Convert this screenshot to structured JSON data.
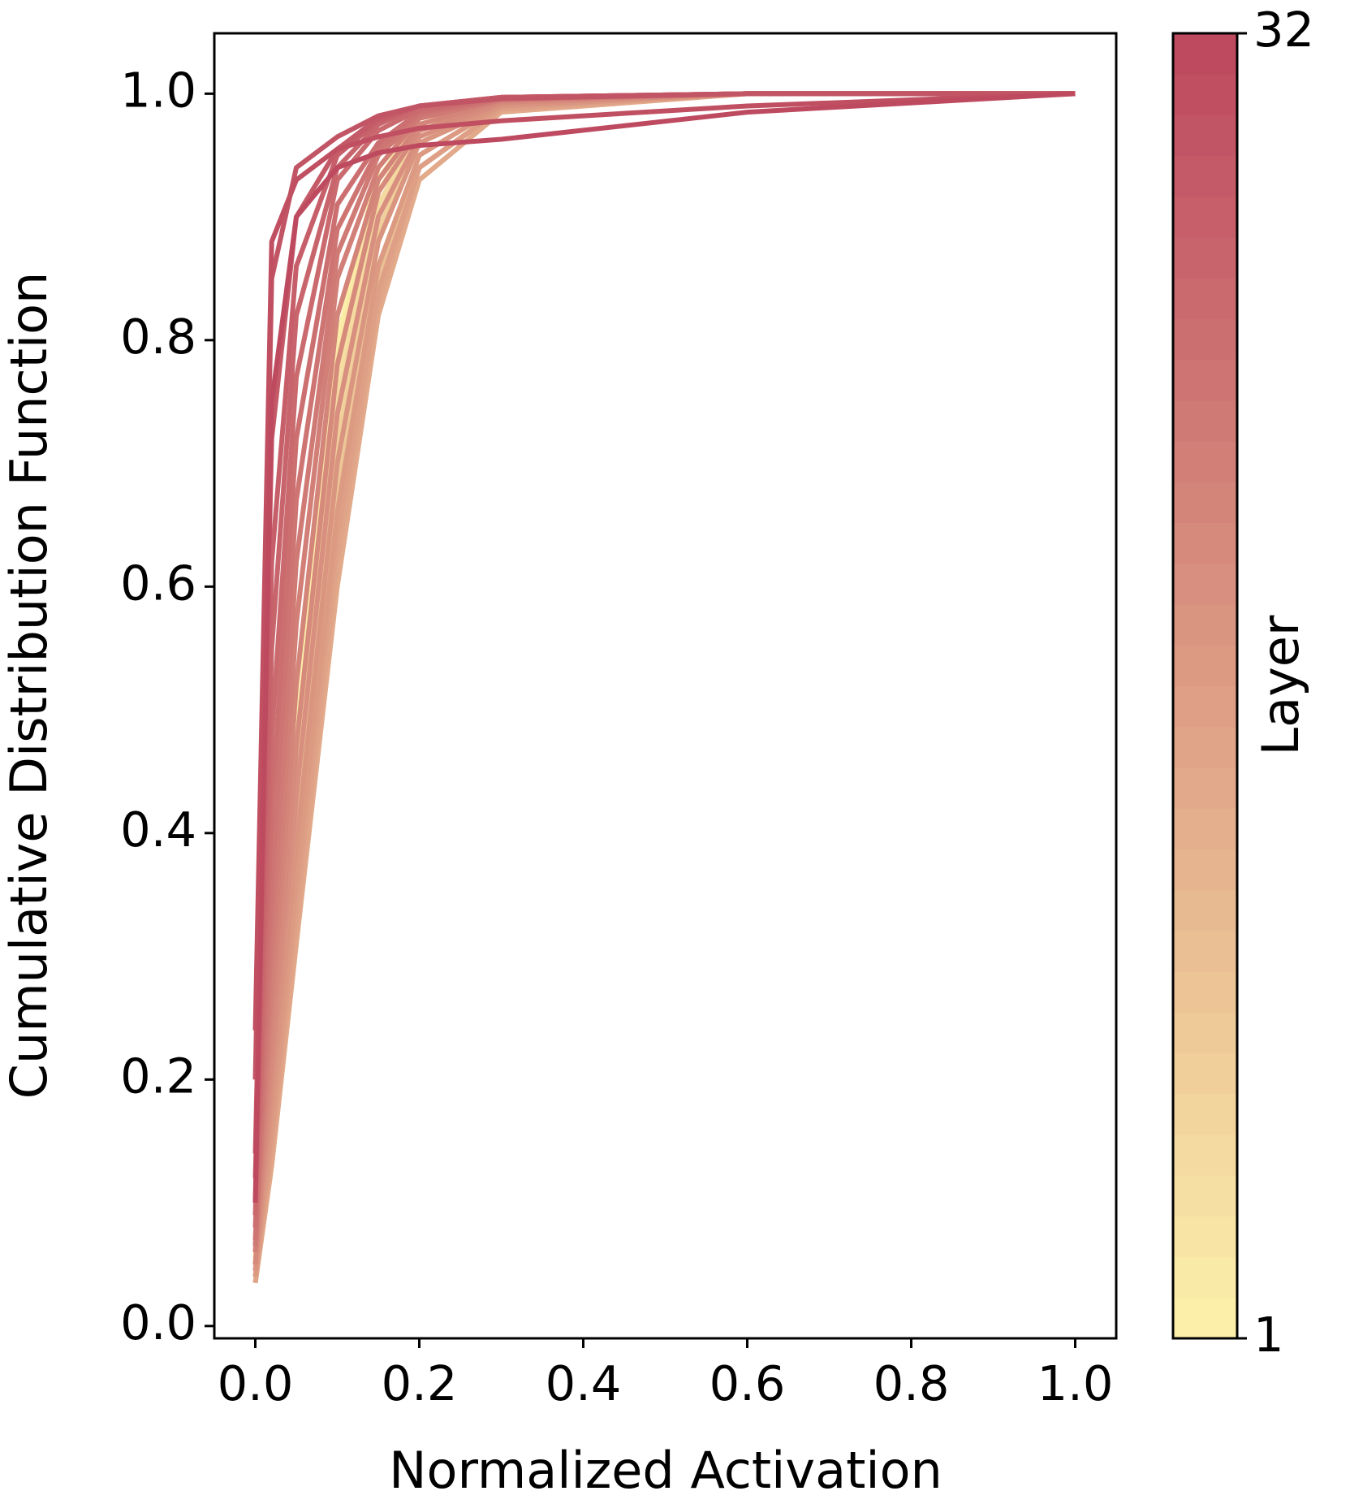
{
  "chart_data": {
    "type": "line",
    "x_label": "Normalized Activation",
    "y_label": "Cumulative Distribution Function",
    "x": [
      0,
      0.02,
      0.05,
      0.1,
      0.15,
      0.2,
      0.3,
      0.6,
      1.0
    ],
    "series": [
      {
        "color": "#fcefa9",
        "values": [
          0.06,
          0.24,
          0.48,
          0.8,
          0.94,
          0.98,
          0.995,
          1,
          1
        ]
      },
      {
        "color": "#faeaa7",
        "values": [
          0.06,
          0.23,
          0.47,
          0.79,
          0.93,
          0.98,
          0.995,
          1,
          1
        ]
      },
      {
        "color": "#f8e4a4",
        "values": [
          0.055,
          0.22,
          0.46,
          0.78,
          0.93,
          0.975,
          0.995,
          1,
          1
        ]
      },
      {
        "color": "#f6dfa2",
        "values": [
          0.055,
          0.21,
          0.45,
          0.77,
          0.92,
          0.975,
          0.995,
          1,
          1
        ]
      },
      {
        "color": "#f4daa0",
        "values": [
          0.05,
          0.2,
          0.43,
          0.75,
          0.91,
          0.97,
          0.993,
          1,
          1
        ]
      },
      {
        "color": "#f2d49d",
        "values": [
          0.05,
          0.19,
          0.42,
          0.73,
          0.9,
          0.97,
          0.993,
          1,
          1
        ]
      },
      {
        "color": "#f0cf9b",
        "values": [
          0.05,
          0.18,
          0.4,
          0.71,
          0.89,
          0.96,
          0.992,
          1,
          1
        ]
      },
      {
        "color": "#eeca99",
        "values": [
          0.045,
          0.17,
          0.38,
          0.69,
          0.88,
          0.96,
          0.99,
          1,
          1
        ]
      },
      {
        "color": "#ecc496",
        "values": [
          0.045,
          0.16,
          0.36,
          0.67,
          0.86,
          0.95,
          0.99,
          1,
          1
        ]
      },
      {
        "color": "#eabf94",
        "values": [
          0.04,
          0.15,
          0.34,
          0.65,
          0.85,
          0.95,
          0.99,
          1,
          1
        ]
      },
      {
        "color": "#e8ba91",
        "values": [
          0.04,
          0.14,
          0.33,
          0.63,
          0.84,
          0.94,
          0.988,
          1,
          1
        ]
      },
      {
        "color": "#e6b48f",
        "values": [
          0.04,
          0.14,
          0.32,
          0.62,
          0.83,
          0.94,
          0.988,
          1,
          1
        ]
      },
      {
        "color": "#e4af8d",
        "values": [
          0.035,
          0.13,
          0.31,
          0.61,
          0.82,
          0.93,
          0.985,
          1,
          1
        ]
      },
      {
        "color": "#e2aa8a",
        "values": [
          0.035,
          0.13,
          0.31,
          0.6,
          0.82,
          0.93,
          0.985,
          1,
          1
        ]
      },
      {
        "color": "#e0a488",
        "values": [
          0.035,
          0.14,
          0.32,
          0.62,
          0.83,
          0.94,
          0.987,
          1,
          1
        ]
      },
      {
        "color": "#de9f86",
        "values": [
          0.04,
          0.15,
          0.34,
          0.64,
          0.84,
          0.94,
          0.988,
          1,
          1
        ]
      },
      {
        "color": "#dc9a83",
        "values": [
          0.04,
          0.16,
          0.36,
          0.66,
          0.86,
          0.95,
          0.99,
          1,
          1
        ]
      },
      {
        "color": "#da9581",
        "values": [
          0.045,
          0.18,
          0.39,
          0.7,
          0.88,
          0.96,
          0.99,
          1,
          1
        ]
      },
      {
        "color": "#d88f7f",
        "values": [
          0.05,
          0.2,
          0.43,
          0.74,
          0.9,
          0.965,
          0.992,
          1,
          1
        ]
      },
      {
        "color": "#d68a7c",
        "values": [
          0.05,
          0.22,
          0.47,
          0.78,
          0.92,
          0.97,
          0.993,
          1,
          1
        ]
      },
      {
        "color": "#d4857a",
        "values": [
          0.06,
          0.25,
          0.52,
          0.82,
          0.93,
          0.975,
          0.994,
          1,
          1
        ]
      },
      {
        "color": "#d27f78",
        "values": [
          0.06,
          0.28,
          0.57,
          0.85,
          0.94,
          0.98,
          0.995,
          1,
          1
        ]
      },
      {
        "color": "#d07a75",
        "values": [
          0.065,
          0.32,
          0.62,
          0.87,
          0.95,
          0.98,
          0.995,
          1,
          1
        ]
      },
      {
        "color": "#ce7573",
        "values": [
          0.07,
          0.36,
          0.67,
          0.89,
          0.955,
          0.983,
          0.996,
          1,
          1
        ]
      },
      {
        "color": "#cc6f70",
        "values": [
          0.08,
          0.42,
          0.72,
          0.91,
          0.96,
          0.985,
          0.996,
          1,
          1
        ]
      },
      {
        "color": "#ca6a6e",
        "values": [
          0.09,
          0.48,
          0.77,
          0.93,
          0.97,
          0.987,
          0.997,
          1,
          1
        ]
      },
      {
        "color": "#c8656c",
        "values": [
          0.1,
          0.55,
          0.82,
          0.94,
          0.975,
          0.99,
          0.997,
          1,
          1
        ]
      },
      {
        "color": "#c65f69",
        "values": [
          0.12,
          0.62,
          0.86,
          0.95,
          0.978,
          0.99,
          0.997,
          1,
          1
        ]
      },
      {
        "color": "#c45a67",
        "values": [
          0.14,
          0.72,
          0.9,
          0.955,
          0.98,
          0.99,
          0.997,
          1,
          1
        ]
      },
      {
        "color": "#c25565",
        "values": [
          0.2,
          0.85,
          0.94,
          0.965,
          0.982,
          0.99,
          0.996,
          1,
          1
        ]
      },
      {
        "color": "#c04f62",
        "values": [
          0.24,
          0.88,
          0.93,
          0.955,
          0.965,
          0.972,
          0.978,
          0.99,
          1
        ]
      },
      {
        "color": "#be4a60",
        "values": [
          0.1,
          0.75,
          0.9,
          0.94,
          0.952,
          0.958,
          0.963,
          0.985,
          1
        ]
      }
    ],
    "xlim": [
      -0.05,
      1.05
    ],
    "ylim": [
      -0.01,
      1.049
    ],
    "xticks": [
      {
        "value": 0,
        "label": "0.0"
      },
      {
        "value": 0.2,
        "label": "0.2"
      },
      {
        "value": 0.4,
        "label": "0.4"
      },
      {
        "value": 0.6,
        "label": "0.6"
      },
      {
        "value": 0.8,
        "label": "0.8"
      },
      {
        "value": 1,
        "label": "1.0"
      }
    ],
    "yticks": [
      {
        "value": 0,
        "label": "0.0"
      },
      {
        "value": 0.2,
        "label": "0.2"
      },
      {
        "value": 0.4,
        "label": "0.4"
      },
      {
        "value": 0.6,
        "label": "0.6"
      },
      {
        "value": 0.8,
        "label": "0.8"
      },
      {
        "value": 1,
        "label": "1.0"
      }
    ],
    "grid": false,
    "colorbar": {
      "label": "Layer",
      "lim": [
        1,
        32
      ],
      "ticks": [
        1,
        32
      ]
    }
  }
}
